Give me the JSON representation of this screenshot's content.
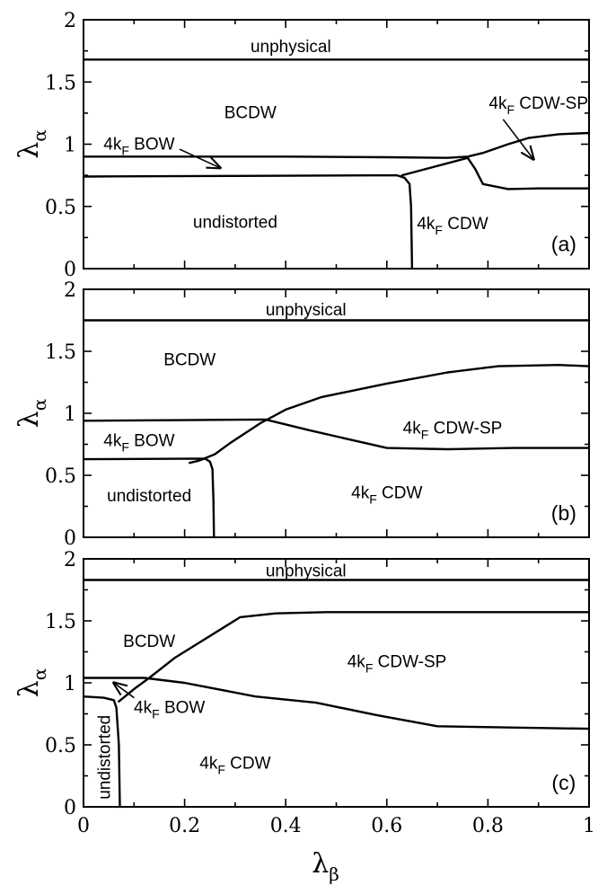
{
  "chart_data": [
    {
      "type": "line",
      "panel": "(a)",
      "xlabel": "",
      "ylabel": "λα",
      "xlim": [
        0,
        1
      ],
      "ylim": [
        0,
        2
      ],
      "xticks": [
        "0",
        "0.2",
        "0.4",
        "0.6",
        "0.8",
        "1"
      ],
      "yticks": [
        "0",
        "0.5",
        "1",
        "1.5",
        "2"
      ],
      "boundaries": [
        {
          "points": [
            [
              0,
              1.68
            ],
            [
              1,
              1.68
            ]
          ]
        },
        {
          "points": [
            [
              0,
              0.9
            ],
            [
              0.2,
              0.9
            ],
            [
              0.4,
              0.9
            ],
            [
              0.6,
              0.895
            ],
            [
              0.72,
              0.89
            ],
            [
              0.76,
              0.9
            ],
            [
              0.79,
              0.93
            ],
            [
              0.84,
              1.0
            ],
            [
              0.88,
              1.05
            ],
            [
              0.94,
              1.08
            ],
            [
              1,
              1.09
            ]
          ]
        },
        {
          "points": [
            [
              0,
              0.74
            ],
            [
              0.3,
              0.745
            ],
            [
              0.62,
              0.75
            ],
            [
              0.635,
              0.73
            ],
            [
              0.645,
              0.68
            ],
            [
              0.648,
              0.5
            ],
            [
              0.65,
              0
            ]
          ]
        },
        {
          "points": [
            [
              0.63,
              0.75
            ],
            [
              0.76,
              0.89
            ]
          ]
        },
        {
          "points": [
            [
              0.76,
              0.89
            ],
            [
              0.775,
              0.8
            ],
            [
              0.79,
              0.68
            ],
            [
              0.84,
              0.64
            ],
            [
              0.9,
              0.645
            ],
            [
              1,
              0.645
            ]
          ]
        }
      ],
      "labels": [
        {
          "text": "unphysical",
          "x": 0.41,
          "y": 1.79
        },
        {
          "text": "BCDW",
          "x": 0.33,
          "y": 1.26
        },
        {
          "text": "undistorted",
          "x": 0.3,
          "y": 0.38
        },
        {
          "text": "(a)",
          "x": 0.95,
          "y": 0.19
        }
      ],
      "sub_labels": [
        {
          "pre": "4k",
          "sub": "F",
          "post": " BOW",
          "x": 0.11,
          "y": 1.0
        },
        {
          "pre": "4k",
          "sub": "F",
          "post": " CDW-SP",
          "x": 0.9,
          "y": 1.33
        },
        {
          "pre": "4k",
          "sub": "F",
          "post": " CDW",
          "x": 0.73,
          "y": 0.36
        }
      ],
      "arrows": [
        {
          "from": [
            0.19,
            0.96
          ],
          "to": [
            0.27,
            0.81
          ]
        },
        {
          "from": [
            0.83,
            1.2
          ],
          "to": [
            0.89,
            0.88
          ]
        }
      ]
    },
    {
      "type": "line",
      "panel": "(b)",
      "xlabel": "",
      "ylabel": "λα",
      "xlim": [
        0,
        1
      ],
      "ylim": [
        0,
        2
      ],
      "xticks": [
        "0",
        "0.2",
        "0.4",
        "0.6",
        "0.8",
        "1"
      ],
      "yticks": [
        "0",
        "0.5",
        "1",
        "1.5",
        "2"
      ],
      "boundaries": [
        {
          "points": [
            [
              0,
              1.75
            ],
            [
              1,
              1.75
            ]
          ]
        },
        {
          "points": [
            [
              0,
              0.94
            ],
            [
              0.2,
              0.945
            ],
            [
              0.36,
              0.95
            ],
            [
              0.45,
              0.86
            ],
            [
              0.6,
              0.72
            ],
            [
              0.72,
              0.71
            ],
            [
              0.85,
              0.72
            ],
            [
              1,
              0.72
            ]
          ]
        },
        {
          "points": [
            [
              0.21,
              0.6
            ],
            [
              0.23,
              0.62
            ],
            [
              0.26,
              0.67
            ],
            [
              0.29,
              0.76
            ],
            [
              0.35,
              0.92
            ],
            [
              0.4,
              1.03
            ],
            [
              0.47,
              1.13
            ],
            [
              0.6,
              1.24
            ],
            [
              0.72,
              1.33
            ],
            [
              0.82,
              1.38
            ],
            [
              0.94,
              1.39
            ],
            [
              1,
              1.38
            ]
          ]
        },
        {
          "points": [
            [
              0,
              0.63
            ],
            [
              0.24,
              0.635
            ],
            [
              0.25,
              0.61
            ],
            [
              0.255,
              0.55
            ],
            [
              0.257,
              0.3
            ],
            [
              0.258,
              0
            ]
          ]
        }
      ],
      "labels": [
        {
          "text": "unphysical",
          "x": 0.44,
          "y": 1.84
        },
        {
          "text": "BCDW",
          "x": 0.21,
          "y": 1.44
        },
        {
          "text": "undistorted",
          "x": 0.13,
          "y": 0.34
        },
        {
          "text": "(b)",
          "x": 0.95,
          "y": 0.19
        }
      ],
      "sub_labels": [
        {
          "pre": "4k",
          "sub": "F",
          "post": " BOW",
          "x": 0.11,
          "y": 0.78
        },
        {
          "pre": "4k",
          "sub": "F",
          "post": " CDW-SP",
          "x": 0.73,
          "y": 0.88
        },
        {
          "pre": "4k",
          "sub": "F",
          "post": " CDW",
          "x": 0.6,
          "y": 0.36
        }
      ],
      "arrows": []
    },
    {
      "type": "line",
      "panel": "(c)",
      "xlabel": "λβ",
      "ylabel": "λα",
      "xlim": [
        0,
        1
      ],
      "ylim": [
        0,
        2
      ],
      "xticks": [
        "0",
        "0.2",
        "0.4",
        "0.6",
        "0.8",
        "1"
      ],
      "yticks": [
        "0",
        "0.5",
        "1",
        "1.5",
        "2"
      ],
      "boundaries": [
        {
          "points": [
            [
              0,
              1.83
            ],
            [
              1,
              1.83
            ]
          ]
        },
        {
          "points": [
            [
              0,
              1.04
            ],
            [
              0.12,
              1.04
            ],
            [
              0.2,
              1.0
            ],
            [
              0.34,
              0.89
            ],
            [
              0.46,
              0.84
            ],
            [
              0.58,
              0.74
            ],
            [
              0.7,
              0.65
            ],
            [
              1,
              0.63
            ]
          ]
        },
        {
          "points": [
            [
              0.07,
              0.85
            ],
            [
              0.1,
              0.95
            ],
            [
              0.13,
              1.04
            ],
            [
              0.18,
              1.2
            ],
            [
              0.31,
              1.53
            ],
            [
              0.38,
              1.56
            ],
            [
              0.48,
              1.57
            ],
            [
              1,
              1.57
            ]
          ]
        },
        {
          "points": [
            [
              0,
              0.89
            ],
            [
              0.04,
              0.88
            ],
            [
              0.06,
              0.86
            ],
            [
              0.065,
              0.8
            ],
            [
              0.07,
              0.5
            ],
            [
              0.072,
              0
            ]
          ]
        }
      ],
      "labels": [
        {
          "text": "unphysical",
          "x": 0.44,
          "y": 1.91
        },
        {
          "text": "BCDW",
          "x": 0.13,
          "y": 1.34
        },
        {
          "text": "(c)",
          "x": 0.95,
          "y": 0.19
        }
      ],
      "vertical_label": {
        "text": "undistorted",
        "x": 0.04,
        "y": 0.4
      },
      "sub_labels": [
        {
          "pre": "4k",
          "sub": "F",
          "post": " CDW-SP",
          "x": 0.62,
          "y": 1.17
        },
        {
          "pre": "4k",
          "sub": "F",
          "post": " BOW",
          "x": 0.17,
          "y": 0.8
        },
        {
          "pre": "4k",
          "sub": "F",
          "post": " CDW",
          "x": 0.3,
          "y": 0.35
        }
      ],
      "arrows": [
        {
          "from": [
            0.1,
            0.88
          ],
          "to": [
            0.06,
            1.0
          ]
        }
      ]
    }
  ]
}
